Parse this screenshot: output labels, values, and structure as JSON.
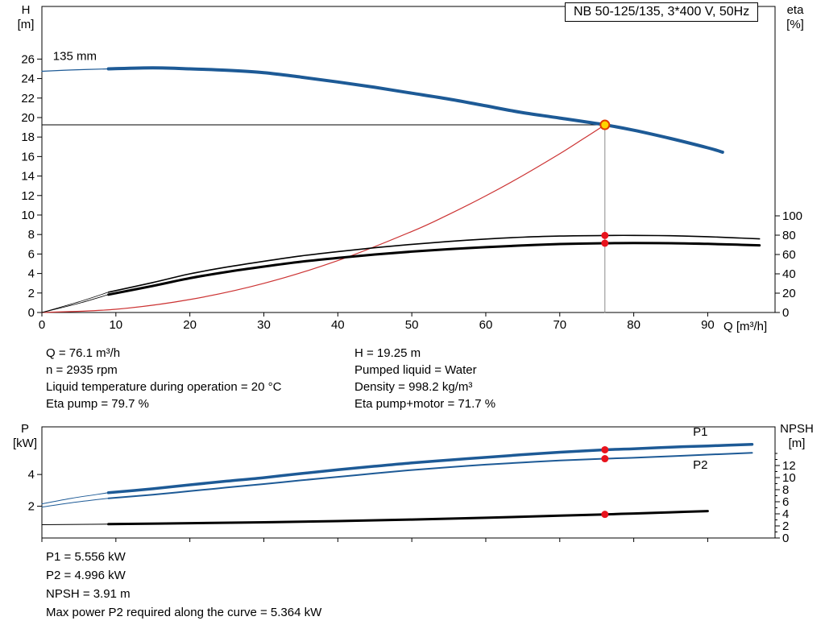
{
  "info_top": {
    "left": [
      "Q = 76.1 m³/h",
      "n = 2935 rpm",
      "Liquid temperature during operation = 20 °C",
      "Eta pump = 79.7 %"
    ],
    "right": [
      "H = 19.25 m",
      "Pumped liquid = Water",
      "Density = 998.2 kg/m³",
      "Eta pump+motor = 71.7 %"
    ]
  },
  "info_bottom": [
    "P1 = 5.556 kW",
    "P2 = 4.996 kW",
    "NPSH = 3.91 m",
    "Max power P2 required along the curve = 5.364 kW"
  ],
  "chart_data": [
    {
      "id": "top",
      "type": "line",
      "title": "NB 50-125/135, 3*400 V, 50Hz",
      "x_label": "Q [m³/h]",
      "x_range": [
        0,
        99.1
      ],
      "x_ticks": [
        0,
        10,
        20,
        30,
        40,
        50,
        60,
        70,
        80,
        90
      ],
      "show_x_labels": true,
      "left_axis": {
        "name": "H",
        "unit": "[m]",
        "range": [
          0,
          31.4
        ],
        "ticks": [
          0,
          2,
          4,
          6,
          8,
          10,
          12,
          14,
          16,
          18,
          20,
          22,
          24,
          26
        ]
      },
      "right_axis": {
        "name": "eta",
        "unit": "[%]",
        "range": [
          0,
          316.7
        ],
        "ticks": [
          0,
          20,
          40,
          60,
          80,
          100
        ]
      },
      "duty_point": {
        "q": 76.1,
        "h": 19.25,
        "eta_pump": 79.7,
        "eta_pump_motor": 71.7,
        "impeller": "135 mm"
      },
      "series": [
        {
          "name": "duty-vline",
          "axis": "left",
          "color": "#8c8c8c",
          "width": 1,
          "points": [
            [
              76.1,
              0
            ],
            [
              76.1,
              19.25
            ]
          ]
        },
        {
          "name": "duty-hline",
          "axis": "left",
          "color": "#000000",
          "width": 1,
          "points": [
            [
              0,
              19.25
            ],
            [
              76.1,
              19.25
            ]
          ]
        },
        {
          "name": "system-curve",
          "axis": "left",
          "color": "#cc3333",
          "width": 1.2,
          "points": [
            [
              0,
              0
            ],
            [
              10,
              0.33
            ],
            [
              20,
              1.33
            ],
            [
              30,
              2.99
            ],
            [
              40,
              5.32
            ],
            [
              50,
              8.31
            ],
            [
              55,
              10.06
            ],
            [
              60,
              11.97
            ],
            [
              65,
              14.05
            ],
            [
              70,
              16.29
            ],
            [
              73,
              17.73
            ],
            [
              76.1,
              19.25
            ]
          ]
        },
        {
          "name": "eta-pump-lead",
          "axis": "right",
          "color": "#000000",
          "width": 0.8,
          "points": [
            [
              0,
              0
            ],
            [
              5,
              11
            ],
            [
              9,
              21
            ]
          ]
        },
        {
          "name": "eta-pump-curve",
          "axis": "right",
          "color": "#000000",
          "width": 1.6,
          "points": [
            [
              9,
              21
            ],
            [
              15,
              31
            ],
            [
              20,
              40
            ],
            [
              25,
              47
            ],
            [
              30,
              53
            ],
            [
              35,
              58.5
            ],
            [
              40,
              63
            ],
            [
              45,
              67
            ],
            [
              50,
              70.5
            ],
            [
              55,
              73.5
            ],
            [
              60,
              76
            ],
            [
              65,
              77.9
            ],
            [
              70,
              79.1
            ],
            [
              76.1,
              79.7
            ],
            [
              80,
              79.8
            ],
            [
              85,
              79.4
            ],
            [
              90,
              78.4
            ],
            [
              94,
              77.2
            ],
            [
              97,
              76.2
            ]
          ]
        },
        {
          "name": "eta-pump-motor-lead",
          "axis": "right",
          "color": "#000000",
          "width": 0.8,
          "points": [
            [
              0,
              0
            ],
            [
              5,
              9.5
            ],
            [
              9,
              18.5
            ]
          ]
        },
        {
          "name": "eta-pump-motor-curve",
          "axis": "right",
          "color": "#000000",
          "width": 3,
          "points": [
            [
              9,
              18.5
            ],
            [
              15,
              27.5
            ],
            [
              20,
              35.5
            ],
            [
              25,
              42
            ],
            [
              30,
              47.5
            ],
            [
              35,
              52.5
            ],
            [
              40,
              56.5
            ],
            [
              45,
              60
            ],
            [
              50,
              63
            ],
            [
              55,
              65.5
            ],
            [
              60,
              67.6
            ],
            [
              65,
              69.4
            ],
            [
              70,
              70.8
            ],
            [
              76.1,
              71.7
            ],
            [
              80,
              71.9
            ],
            [
              85,
              71.7
            ],
            [
              90,
              71
            ],
            [
              94,
              70.2
            ],
            [
              97,
              69.5
            ]
          ]
        },
        {
          "name": "head-curve-lead",
          "axis": "left",
          "color": "#1d5a96",
          "width": 1.2,
          "points": [
            [
              0,
              24.75
            ],
            [
              4,
              24.88
            ],
            [
              9,
              25
            ]
          ]
        },
        {
          "name": "head-curve",
          "axis": "left",
          "color": "#1d5a96",
          "width": 4,
          "points": [
            [
              9,
              25
            ],
            [
              15,
              25.1
            ],
            [
              20,
              25
            ],
            [
              25,
              24.85
            ],
            [
              30,
              24.6
            ],
            [
              35,
              24.15
            ],
            [
              40,
              23.65
            ],
            [
              45,
              23.1
            ],
            [
              50,
              22.5
            ],
            [
              55,
              21.9
            ],
            [
              60,
              21.2
            ],
            [
              65,
              20.5
            ],
            [
              70,
              19.95
            ],
            [
              76.1,
              19.25
            ],
            [
              80,
              18.7
            ],
            [
              85,
              17.85
            ],
            [
              90,
              16.9
            ],
            [
              92,
              16.45
            ]
          ]
        }
      ],
      "markers": [
        {
          "name": "eta-pump-dot",
          "axis": "right",
          "q": 76.1,
          "v": 79.7,
          "r": 4.5,
          "fill": "#e8131d"
        },
        {
          "name": "eta-pump-motor-dot",
          "axis": "right",
          "q": 76.1,
          "v": 71.7,
          "r": 4.5,
          "fill": "#e8131d"
        },
        {
          "name": "duty-point-marker",
          "axis": "left",
          "q": 76.1,
          "v": 19.25,
          "r": 5.5,
          "fill": "#ffd400",
          "stroke": "#e03c00",
          "sw": 2,
          "interactable": true
        }
      ],
      "annotations": [
        {
          "name": "impeller-size-label",
          "text": "135 mm",
          "q": 1.5,
          "axis": "left",
          "v": 25.9,
          "color": "#000000",
          "anchor": "start",
          "size": 15
        }
      ]
    },
    {
      "id": "bottom",
      "type": "line",
      "x_range": [
        0,
        99.1
      ],
      "x_ticks": [
        0,
        10,
        20,
        30,
        40,
        50,
        60,
        70,
        80,
        90
      ],
      "show_x_labels": false,
      "left_axis": {
        "name": "P",
        "unit": "[kW]",
        "range": [
          0,
          7
        ],
        "ticks": [
          2,
          4
        ]
      },
      "right_axis": {
        "name": "NPSH",
        "unit": "[m]",
        "range": [
          0,
          18.4
        ],
        "ticks": [
          0,
          1,
          2,
          3,
          4,
          5,
          6,
          7,
          8,
          9,
          10,
          11,
          12,
          13,
          14
        ],
        "labeled": [
          0,
          2,
          4,
          6,
          8,
          10,
          12
        ]
      },
      "duty_point": {
        "q": 76.1,
        "p1": 5.556,
        "p2": 4.996,
        "npsh": 3.91
      },
      "series": [
        {
          "name": "p1-lead",
          "axis": "left",
          "color": "#1d5a96",
          "width": 1,
          "points": [
            [
              0,
              2.15
            ],
            [
              4,
              2.5
            ],
            [
              9,
              2.85
            ]
          ]
        },
        {
          "name": "p1-curve",
          "axis": "left",
          "color": "#1d5a96",
          "width": 3.5,
          "points": [
            [
              9,
              2.85
            ],
            [
              15,
              3.1
            ],
            [
              20,
              3.35
            ],
            [
              25,
              3.58
            ],
            [
              30,
              3.8
            ],
            [
              35,
              4.06
            ],
            [
              40,
              4.3
            ],
            [
              45,
              4.52
            ],
            [
              50,
              4.73
            ],
            [
              55,
              4.91
            ],
            [
              60,
              5.08
            ],
            [
              65,
              5.25
            ],
            [
              70,
              5.4
            ],
            [
              76.1,
              5.556
            ],
            [
              80,
              5.62
            ],
            [
              85,
              5.72
            ],
            [
              90,
              5.8
            ],
            [
              96,
              5.9
            ]
          ]
        },
        {
          "name": "p2-lead",
          "axis": "left",
          "color": "#1d5a96",
          "width": 1,
          "points": [
            [
              0,
              1.95
            ],
            [
              4,
              2.22
            ],
            [
              9,
              2.5
            ]
          ]
        },
        {
          "name": "p2-curve",
          "axis": "left",
          "color": "#1d5a96",
          "width": 2,
          "points": [
            [
              9,
              2.5
            ],
            [
              15,
              2.73
            ],
            [
              20,
              2.95
            ],
            [
              25,
              3.18
            ],
            [
              30,
              3.4
            ],
            [
              35,
              3.63
            ],
            [
              40,
              3.85
            ],
            [
              45,
              4.07
            ],
            [
              50,
              4.28
            ],
            [
              55,
              4.46
            ],
            [
              60,
              4.62
            ],
            [
              65,
              4.76
            ],
            [
              70,
              4.88
            ],
            [
              76.1,
              4.996
            ],
            [
              80,
              5.05
            ],
            [
              85,
              5.15
            ],
            [
              90,
              5.25
            ],
            [
              96,
              5.364
            ]
          ]
        },
        {
          "name": "npsh-lead",
          "axis": "right",
          "color": "#000000",
          "width": 1,
          "points": [
            [
              0,
              2.2
            ],
            [
              9,
              2.3
            ]
          ]
        },
        {
          "name": "npsh-curve",
          "axis": "right",
          "color": "#000000",
          "width": 3,
          "points": [
            [
              9,
              2.3
            ],
            [
              20,
              2.45
            ],
            [
              30,
              2.6
            ],
            [
              40,
              2.8
            ],
            [
              50,
              3.05
            ],
            [
              60,
              3.35
            ],
            [
              70,
              3.7
            ],
            [
              76.1,
              3.91
            ],
            [
              80,
              4.05
            ],
            [
              85,
              4.25
            ],
            [
              90,
              4.45
            ]
          ]
        }
      ],
      "markers": [
        {
          "name": "p1-dot",
          "axis": "left",
          "q": 76.1,
          "v": 5.556,
          "r": 4.5,
          "fill": "#e8131d"
        },
        {
          "name": "p2-dot",
          "axis": "left",
          "q": 76.1,
          "v": 4.996,
          "r": 4.5,
          "fill": "#e8131d"
        },
        {
          "name": "npsh-dot",
          "axis": "right",
          "q": 76.1,
          "v": 3.91,
          "r": 4.5,
          "fill": "#e8131d"
        }
      ],
      "annotations": [
        {
          "name": "p1-curve-label",
          "text": "P1",
          "q": 88,
          "axis": "left",
          "v": 6.45,
          "color": "#1d5a96",
          "anchor": "start",
          "size": 15
        },
        {
          "name": "p2-curve-label",
          "text": "P2",
          "q": 88,
          "axis": "left",
          "v": 4.35,
          "color": "#1d5a96",
          "anchor": "start",
          "size": 15
        }
      ]
    }
  ]
}
